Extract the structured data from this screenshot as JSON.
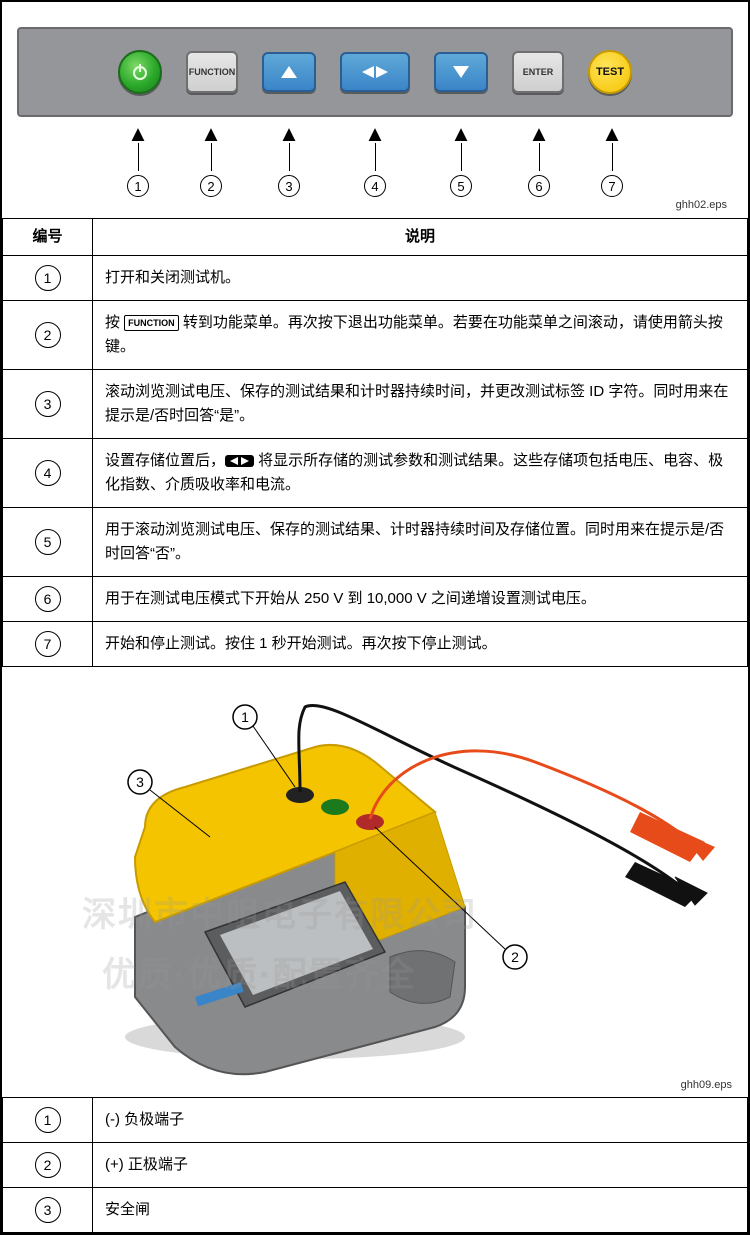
{
  "panel": {
    "buttons": [
      {
        "id": 1,
        "type": "power"
      },
      {
        "id": 2,
        "type": "function",
        "label": "FUNCTION"
      },
      {
        "id": 3,
        "type": "blue-up"
      },
      {
        "id": 4,
        "type": "blue-lr"
      },
      {
        "id": 5,
        "type": "blue-down"
      },
      {
        "id": 6,
        "type": "function",
        "label": "ENTER"
      },
      {
        "id": 7,
        "type": "test",
        "label": "TEST"
      }
    ],
    "eps_label": "ghh02.eps",
    "panel_bg": "#949699",
    "blue_btn": "#3a85c8",
    "power_green": "#2aa92a",
    "test_yellow": "#f5c300"
  },
  "table1": {
    "header_num": "编号",
    "header_desc": "说明",
    "rows": [
      {
        "num": "1",
        "desc_parts": [
          "打开和关闭测试机。"
        ]
      },
      {
        "num": "2",
        "desc_parts": [
          "按 ",
          {
            "badge": "FUNCTION"
          },
          " 转到功能菜单。再次按下退出功能菜单。若要在功能菜单之间滚动，请使用箭头按键。"
        ]
      },
      {
        "num": "3",
        "desc_parts": [
          "滚动浏览测试电压、保存的测试结果和计时器持续时间，并更改测试标签 ID 字符。同时用来在提示是/否时回答“是”。"
        ]
      },
      {
        "num": "4",
        "desc_parts": [
          "设置存储位置后，",
          {
            "lr": true
          },
          " 将显示所存储的测试参数和测试结果。这些存储项包括电压、电容、极化指数、介质吸收率和电流。"
        ]
      },
      {
        "num": "5",
        "desc_parts": [
          "用于滚动浏览测试电压、保存的测试结果、计时器持续时间及存储位置。同时用来在提示是/否时回答“否”。"
        ]
      },
      {
        "num": "6",
        "desc_parts": [
          "用于在测试电压模式下开始从 250 V 到 10,000 V 之间递增设置测试电压。"
        ]
      },
      {
        "num": "7",
        "desc_parts": [
          "开始和停止测试。按住 1 秒开始测试。再次按下停止测试。"
        ]
      }
    ]
  },
  "device": {
    "eps_label": "ghh09.eps",
    "callouts": [
      {
        "num": "1"
      },
      {
        "num": "2"
      },
      {
        "num": "3"
      }
    ],
    "body_yellow": "#f5c400",
    "body_gray": "#888a8c",
    "screen_gray": "#bcbfc1",
    "probe_red": "#e74b1a",
    "probe_black": "#111111"
  },
  "table2": {
    "rows": [
      {
        "num": "1",
        "desc": "(-) 负极端子"
      },
      {
        "num": "2",
        "desc": "(+) 正极端子"
      },
      {
        "num": "3",
        "desc": "安全闸"
      }
    ]
  },
  "watermarks": {
    "line1": "深圳市中咀电子有限公司",
    "line2": "优质·优质·配置齐全"
  }
}
